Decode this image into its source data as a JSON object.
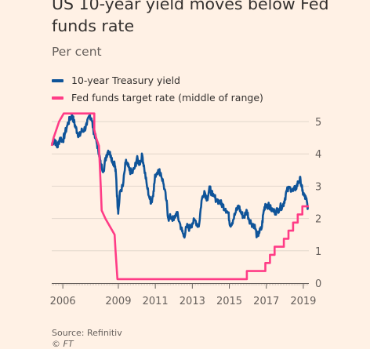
{
  "header": {
    "title": "US 10-year yield moves below Fed funds rate",
    "subtitle": "Per cent"
  },
  "legend": {
    "items": [
      {
        "label": "10-year Treasury yield",
        "color": "#0f5499"
      },
      {
        "label": "Fed funds target rate (middle of range)",
        "color": "#ff3c86"
      }
    ]
  },
  "footer": {
    "source": "Source: Refinitiv",
    "copyright": "© FT"
  },
  "chart_data": {
    "type": "line",
    "title": "US 10-year yield moves below Fed funds rate",
    "ylabel": "Per cent",
    "xlim": [
      2005.4,
      2019.3
    ],
    "ylim": [
      0,
      5
    ],
    "y_ticks": [
      0,
      1,
      2,
      3,
      4,
      5
    ],
    "x_ticks": [
      2006,
      2009,
      2011,
      2013,
      2015,
      2017,
      2019
    ],
    "grid": true,
    "series": [
      {
        "name": "10-year Treasury yield",
        "color": "#0f5499",
        "points": [
          [
            2005.4,
            4.3
          ],
          [
            2005.55,
            4.45
          ],
          [
            2005.7,
            4.2
          ],
          [
            2005.85,
            4.5
          ],
          [
            2006.0,
            4.4
          ],
          [
            2006.1,
            4.6
          ],
          [
            2006.25,
            4.9
          ],
          [
            2006.4,
            5.1
          ],
          [
            2006.5,
            5.2
          ],
          [
            2006.6,
            5.0
          ],
          [
            2006.7,
            4.8
          ],
          [
            2006.8,
            4.65
          ],
          [
            2006.9,
            4.55
          ],
          [
            2007.0,
            4.7
          ],
          [
            2007.15,
            4.75
          ],
          [
            2007.3,
            4.9
          ],
          [
            2007.45,
            5.2
          ],
          [
            2007.55,
            5.1
          ],
          [
            2007.65,
            4.75
          ],
          [
            2007.75,
            4.55
          ],
          [
            2007.85,
            4.3
          ],
          [
            2007.95,
            4.05
          ],
          [
            2008.05,
            3.65
          ],
          [
            2008.2,
            3.5
          ],
          [
            2008.35,
            3.95
          ],
          [
            2008.45,
            4.1
          ],
          [
            2008.6,
            3.95
          ],
          [
            2008.7,
            3.75
          ],
          [
            2008.8,
            3.7
          ],
          [
            2008.88,
            3.3
          ],
          [
            2008.95,
            2.5
          ],
          [
            2009.0,
            2.2
          ],
          [
            2009.1,
            2.85
          ],
          [
            2009.25,
            3.0
          ],
          [
            2009.4,
            3.75
          ],
          [
            2009.5,
            3.65
          ],
          [
            2009.6,
            3.5
          ],
          [
            2009.75,
            3.4
          ],
          [
            2009.9,
            3.6
          ],
          [
            2010.0,
            3.85
          ],
          [
            2010.15,
            3.7
          ],
          [
            2010.3,
            3.95
          ],
          [
            2010.4,
            3.55
          ],
          [
            2010.55,
            3.0
          ],
          [
            2010.7,
            2.6
          ],
          [
            2010.8,
            2.5
          ],
          [
            2010.9,
            2.85
          ],
          [
            2011.0,
            3.35
          ],
          [
            2011.15,
            3.5
          ],
          [
            2011.3,
            3.4
          ],
          [
            2011.45,
            3.05
          ],
          [
            2011.6,
            2.55
          ],
          [
            2011.7,
            2.0
          ],
          [
            2011.85,
            2.05
          ],
          [
            2012.0,
            1.95
          ],
          [
            2012.15,
            2.2
          ],
          [
            2012.3,
            1.9
          ],
          [
            2012.45,
            1.6
          ],
          [
            2012.55,
            1.45
          ],
          [
            2012.7,
            1.75
          ],
          [
            2012.85,
            1.7
          ],
          [
            2013.0,
            1.85
          ],
          [
            2013.15,
            1.95
          ],
          [
            2013.35,
            1.75
          ],
          [
            2013.5,
            2.55
          ],
          [
            2013.65,
            2.85
          ],
          [
            2013.8,
            2.6
          ],
          [
            2013.95,
            2.95
          ],
          [
            2014.1,
            2.7
          ],
          [
            2014.3,
            2.6
          ],
          [
            2014.5,
            2.5
          ],
          [
            2014.65,
            2.4
          ],
          [
            2014.8,
            2.3
          ],
          [
            2014.95,
            2.15
          ],
          [
            2015.05,
            1.8
          ],
          [
            2015.2,
            1.95
          ],
          [
            2015.35,
            2.2
          ],
          [
            2015.5,
            2.4
          ],
          [
            2015.65,
            2.15
          ],
          [
            2015.8,
            2.05
          ],
          [
            2015.95,
            2.25
          ],
          [
            2016.05,
            2.0
          ],
          [
            2016.2,
            1.85
          ],
          [
            2016.35,
            1.8
          ],
          [
            2016.5,
            1.45
          ],
          [
            2016.6,
            1.55
          ],
          [
            2016.75,
            1.7
          ],
          [
            2016.85,
            2.2
          ],
          [
            2016.95,
            2.45
          ],
          [
            2017.1,
            2.4
          ],
          [
            2017.25,
            2.3
          ],
          [
            2017.45,
            2.2
          ],
          [
            2017.6,
            2.25
          ],
          [
            2017.75,
            2.35
          ],
          [
            2017.9,
            2.4
          ],
          [
            2018.0,
            2.6
          ],
          [
            2018.1,
            2.85
          ],
          [
            2018.3,
            2.95
          ],
          [
            2018.45,
            2.85
          ],
          [
            2018.6,
            2.95
          ],
          [
            2018.75,
            3.15
          ],
          [
            2018.85,
            3.2
          ],
          [
            2018.95,
            2.85
          ],
          [
            2019.05,
            2.7
          ],
          [
            2019.15,
            2.6
          ],
          [
            2019.25,
            2.35
          ]
        ]
      },
      {
        "name": "Fed funds target rate (middle of range)",
        "color": "#ff3c86",
        "points": [
          [
            2005.4,
            4.25
          ],
          [
            2005.5,
            4.5
          ],
          [
            2005.65,
            4.75
          ],
          [
            2005.8,
            5.0
          ],
          [
            2006.05,
            5.25
          ],
          [
            2007.7,
            5.25
          ],
          [
            2007.7,
            4.75
          ],
          [
            2007.8,
            4.5
          ],
          [
            2007.95,
            4.25
          ],
          [
            2008.05,
            3.0
          ],
          [
            2008.1,
            2.25
          ],
          [
            2008.3,
            2.0
          ],
          [
            2008.8,
            1.5
          ],
          [
            2008.85,
            1.0
          ],
          [
            2008.95,
            0.125
          ],
          [
            2015.95,
            0.125
          ],
          [
            2015.95,
            0.375
          ],
          [
            2016.95,
            0.375
          ],
          [
            2016.95,
            0.625
          ],
          [
            2017.2,
            0.625
          ],
          [
            2017.2,
            0.875
          ],
          [
            2017.45,
            0.875
          ],
          [
            2017.45,
            1.125
          ],
          [
            2017.95,
            1.125
          ],
          [
            2017.95,
            1.375
          ],
          [
            2018.2,
            1.375
          ],
          [
            2018.2,
            1.625
          ],
          [
            2018.45,
            1.625
          ],
          [
            2018.45,
            1.875
          ],
          [
            2018.7,
            1.875
          ],
          [
            2018.7,
            2.125
          ],
          [
            2018.95,
            2.125
          ],
          [
            2018.95,
            2.375
          ],
          [
            2019.3,
            2.375
          ]
        ]
      }
    ]
  }
}
